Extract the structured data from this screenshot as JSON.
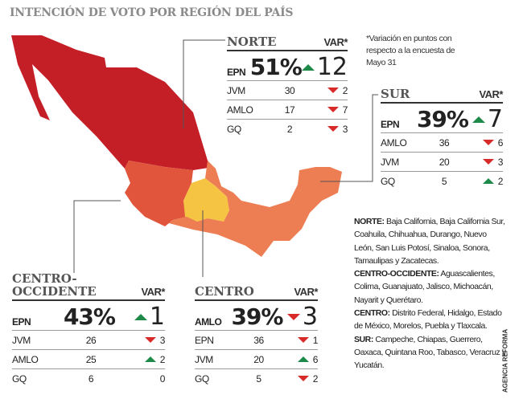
{
  "title": "INTENCIÓN DE VOTO POR REGIÓN DEL PAÍS",
  "note": "*Variación en puntos con respecto a la encuesta de Mayo 31",
  "var_label": "VAR*",
  "colors": {
    "norte": "#c41e26",
    "centro_occidente": "#e1553c",
    "centro": "#f6c443",
    "sur": "#ed7d52",
    "up": "#1e8a4a",
    "down": "#d92a2a"
  },
  "regions": {
    "norte": {
      "name": "NORTE",
      "lead": {
        "cand": "EPN",
        "pct": "51%",
        "dir": "up",
        "chg": "12"
      },
      "rows": [
        {
          "cand": "JVM",
          "val": "30",
          "dir": "down",
          "chg": "2"
        },
        {
          "cand": "AMLO",
          "val": "17",
          "dir": "down",
          "chg": "7"
        },
        {
          "cand": "GQ",
          "val": "2",
          "dir": "down",
          "chg": "3"
        }
      ]
    },
    "sur": {
      "name": "SUR",
      "lead": {
        "cand": "EPN",
        "pct": "39%",
        "dir": "up",
        "chg": "7"
      },
      "rows": [
        {
          "cand": "AMLO",
          "val": "36",
          "dir": "down",
          "chg": "6"
        },
        {
          "cand": "JVM",
          "val": "20",
          "dir": "down",
          "chg": "3"
        },
        {
          "cand": "GQ",
          "val": "5",
          "dir": "up",
          "chg": "2"
        }
      ]
    },
    "centro_occidente": {
      "name": "CENTRO-\nOCCIDENTE",
      "lead": {
        "cand": "EPN",
        "pct": "43%",
        "dir": "up",
        "chg": "1"
      },
      "rows": [
        {
          "cand": "JVM",
          "val": "26",
          "dir": "down",
          "chg": "3"
        },
        {
          "cand": "AMLO",
          "val": "25",
          "dir": "up",
          "chg": "2"
        },
        {
          "cand": "GQ",
          "val": "6",
          "dir": "none",
          "chg": "0"
        }
      ]
    },
    "centro": {
      "name": "CENTRO",
      "lead": {
        "cand": "AMLO",
        "pct": "39%",
        "dir": "down",
        "chg": "3"
      },
      "rows": [
        {
          "cand": "EPN",
          "val": "36",
          "dir": "down",
          "chg": "1"
        },
        {
          "cand": "JVM",
          "val": "20",
          "dir": "up",
          "chg": "6"
        },
        {
          "cand": "GQ",
          "val": "5",
          "dir": "down",
          "chg": "2"
        }
      ]
    }
  },
  "legend": [
    {
      "label": "NORTE:",
      "states": "Baja California, Baja California Sur, Coahuila, Chihuahua, Durango, Nuevo León, San Luis Potosí, Sinaloa, Sonora, Tamaulipas y Zacatecas."
    },
    {
      "label": "CENTRO-OCCIDENTE:",
      "states": "Aguascalientes, Colima, Guanajuato, Jalisco, Michoacán, Nayarit y Querétaro."
    },
    {
      "label": "CENTRO:",
      "states": "Distrito Federal, Hidalgo, Estado de México, Morelos, Puebla y Tlaxcala."
    },
    {
      "label": "SUR:",
      "states": "Campeche, Chiapas, Guerrero, Oaxaca, Quintana Roo, Tabasco, Veracruz y Yucatán."
    }
  ],
  "credit": "AGENCIA REFORMA"
}
